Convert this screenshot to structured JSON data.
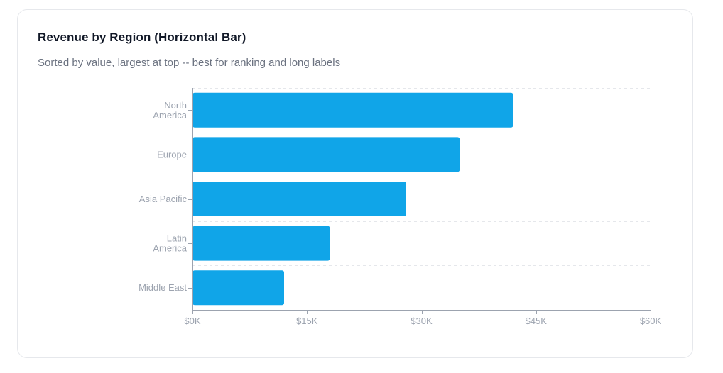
{
  "card": {
    "title": "Revenue by Region (Horizontal Bar)",
    "subtitle": "Sorted by value, largest at top -- best for ranking and long labels"
  },
  "chart_data": {
    "type": "bar",
    "orientation": "horizontal",
    "title": "Revenue by Region (Horizontal Bar)",
    "subtitle": "Sorted by value, largest at top -- best for ranking and long labels",
    "categories": [
      "North America",
      "Europe",
      "Asia Pacific",
      "Latin America",
      "Middle East"
    ],
    "category_label_lines": [
      [
        "North",
        "America"
      ],
      [
        "Europe"
      ],
      [
        "Asia Pacific"
      ],
      [
        "Latin",
        "America"
      ],
      [
        "Middle East"
      ]
    ],
    "values": [
      42000,
      35000,
      28000,
      18000,
      12000
    ],
    "xlim": [
      0,
      60000
    ],
    "x_ticks": [
      0,
      15000,
      30000,
      45000,
      60000
    ],
    "x_tick_labels": [
      "$0K",
      "$15K",
      "$30K",
      "$45K",
      "$60K"
    ],
    "xlabel": "",
    "ylabel": "",
    "grid": "horizontal dashed",
    "legend": "none",
    "colors": {
      "bar": "#10a5e8",
      "axis": "#9ca3af",
      "grid": "#e5e7eb",
      "tick_text": "#9ca3af"
    }
  }
}
